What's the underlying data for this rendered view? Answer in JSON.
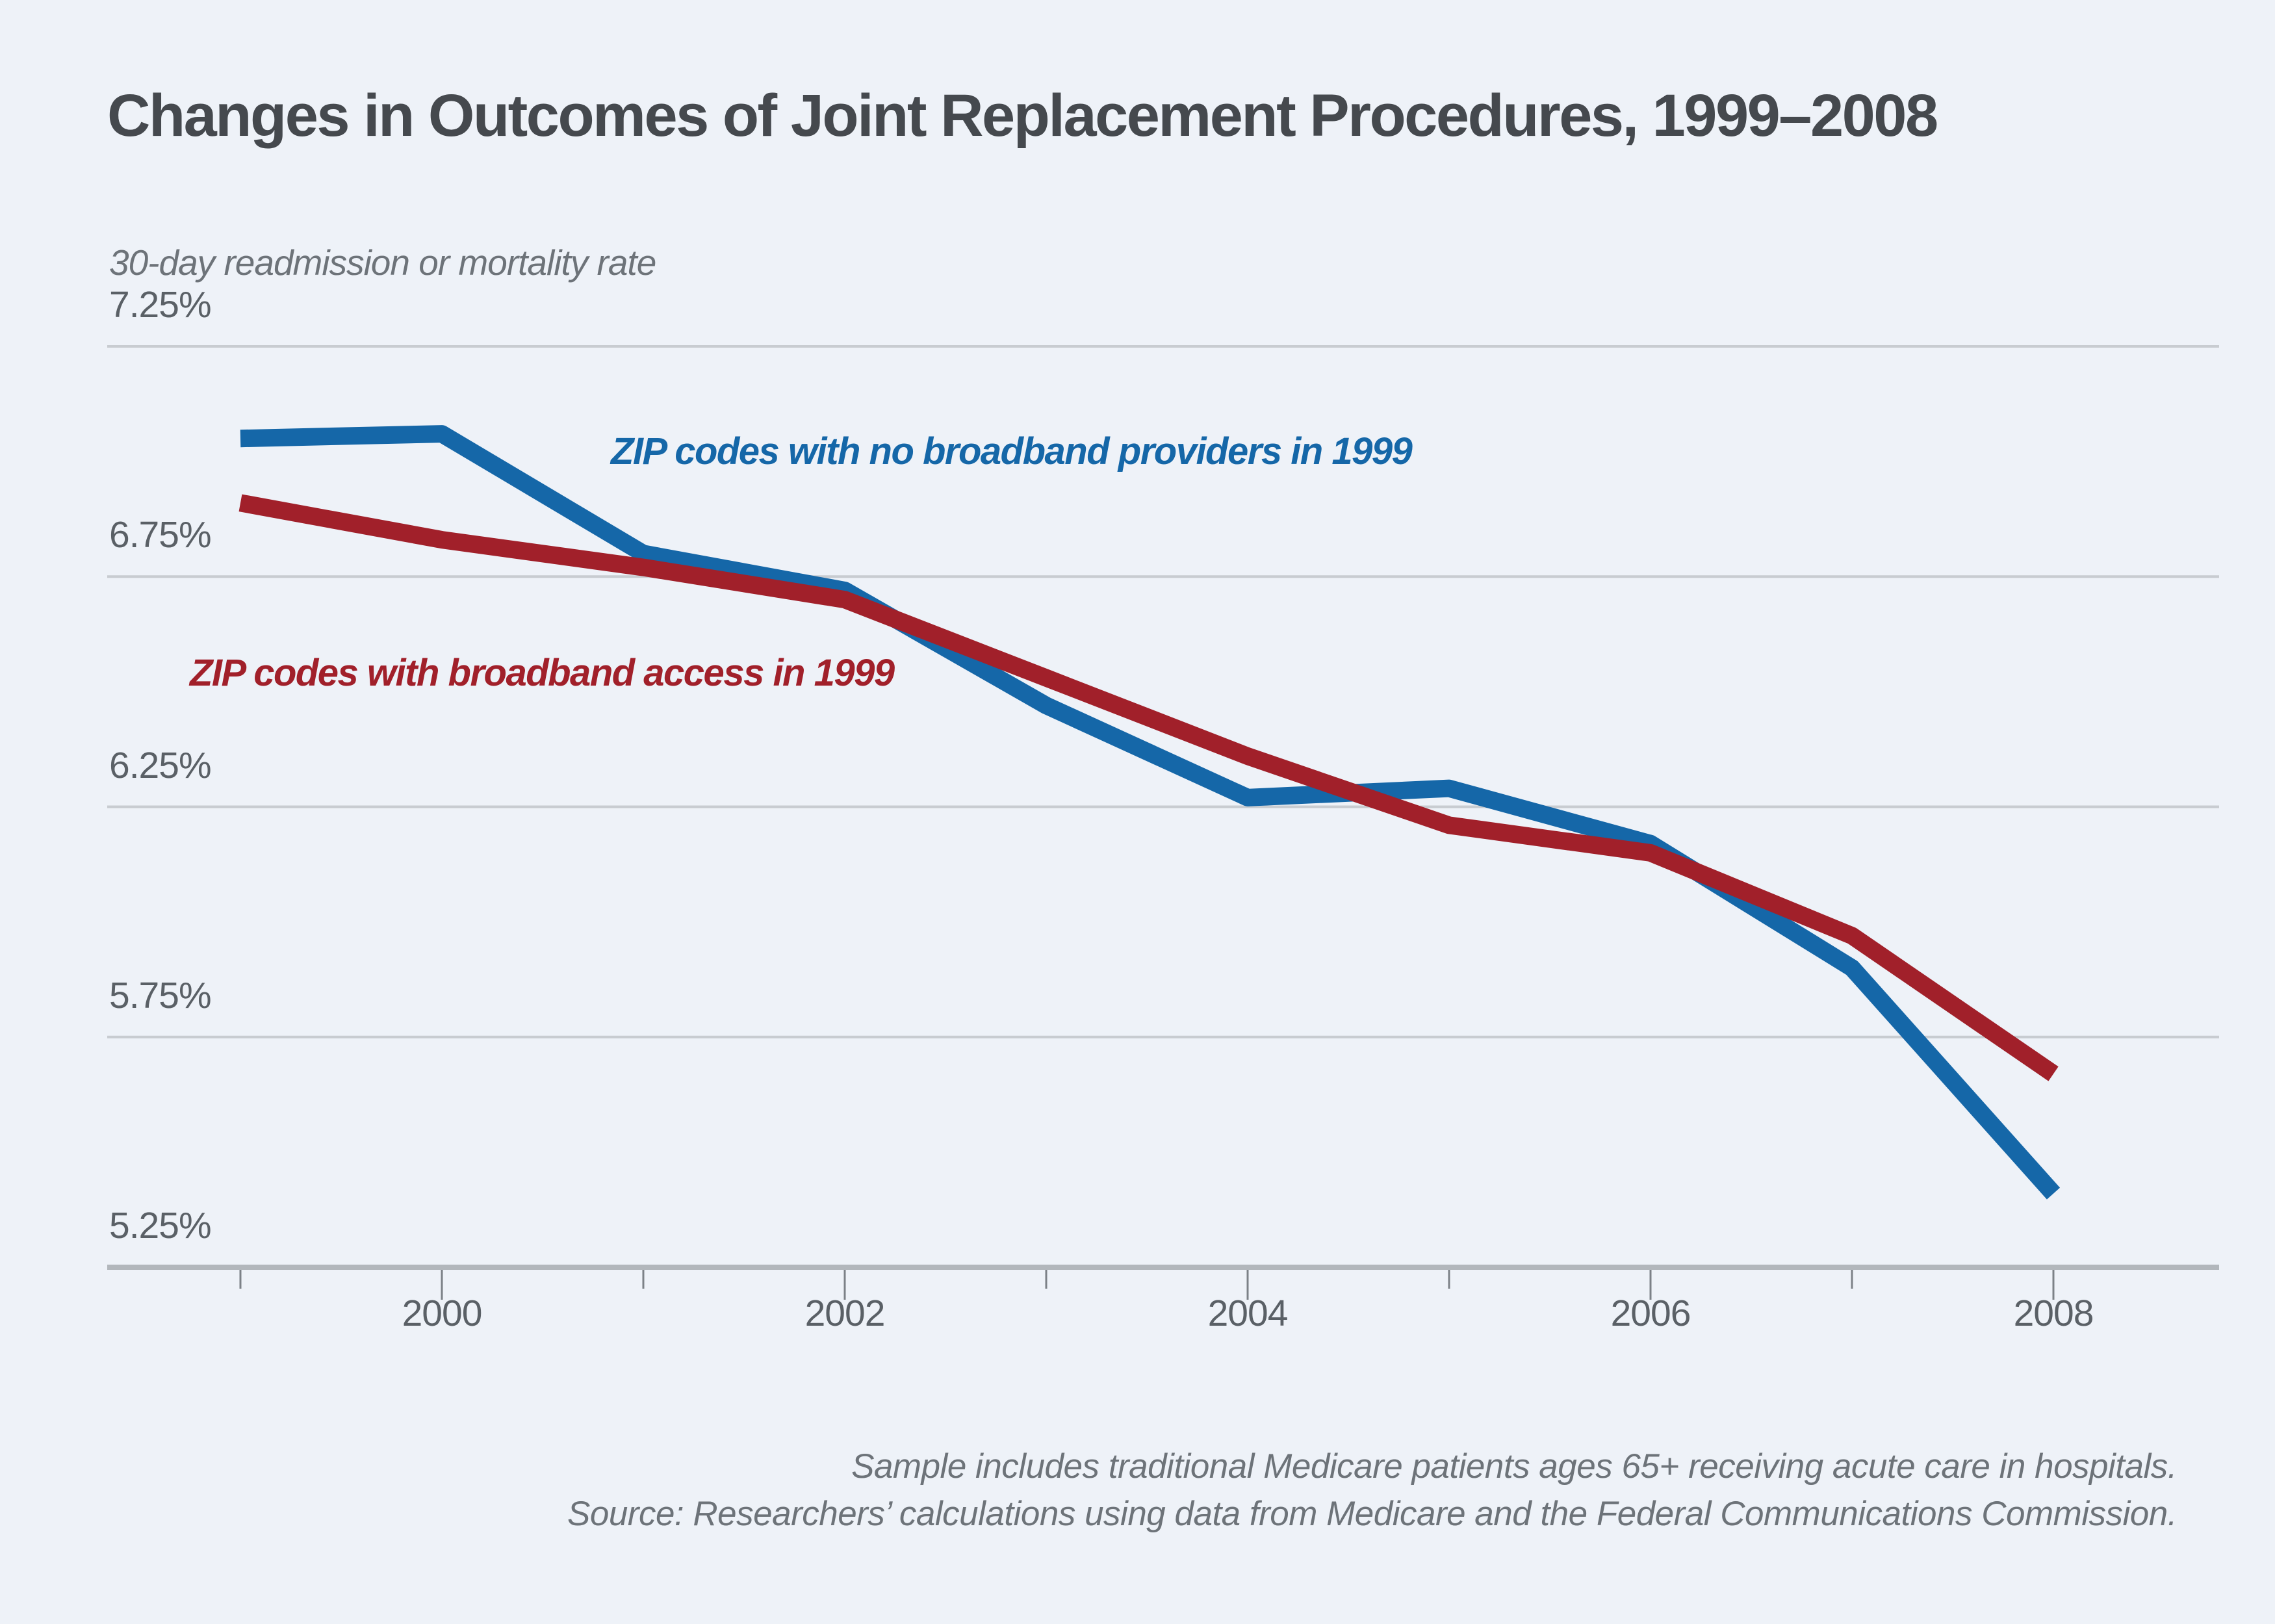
{
  "chart_data": {
    "type": "line",
    "title": "Changes in Outcomes of Joint Replacement Procedures, 1999–2008",
    "ylabel": "30-day readmission or mortality rate",
    "x": [
      1999,
      2000,
      2001,
      2002,
      2003,
      2004,
      2005,
      2006,
      2007,
      2008
    ],
    "series": [
      {
        "name": "ZIP codes with no broadband providers in 1999",
        "color": "#1567a8",
        "values": [
          7.05,
          7.06,
          6.8,
          6.72,
          6.47,
          6.27,
          6.29,
          6.17,
          5.9,
          5.41
        ]
      },
      {
        "name": "ZIP codes with broadband access in 1999",
        "color": "#a1202a",
        "values": [
          6.91,
          6.83,
          6.77,
          6.7,
          6.53,
          6.36,
          6.21,
          6.15,
          5.97,
          5.67
        ]
      }
    ],
    "y_ticks": [
      {
        "label": "7.25%",
        "value": 7.25
      },
      {
        "label": "6.75%",
        "value": 6.75
      },
      {
        "label": "6.25%",
        "value": 6.25
      },
      {
        "label": "5.75%",
        "value": 5.75
      },
      {
        "label": "5.25%",
        "value": 5.25
      }
    ],
    "x_tick_labels": [
      {
        "label": "2000",
        "value": 2000
      },
      {
        "label": "2002",
        "value": 2002
      },
      {
        "label": "2004",
        "value": 2004
      },
      {
        "label": "2006",
        "value": 2006
      },
      {
        "label": "2008",
        "value": 2008
      }
    ],
    "ylim": [
      5.25,
      7.25
    ],
    "xlim": [
      1999,
      2008
    ],
    "grid": "horizontal gridlines at labeled y ticks, bottom axis line only",
    "legend_position": "inline colored labels beside each line",
    "footnotes": [
      "Sample includes traditional Medicare patients ages 65+ receiving acute care in hospitals.",
      "Source: Researchers’ calculations using data from Medicare and the Federal Communications Commission."
    ],
    "colors": {
      "background": "#eef2f8",
      "gridline": "#c8ccd1",
      "axis_line": "#b2b7bc",
      "tick_mark": "#7c8187",
      "title_text": "#45494e",
      "tick_label_text": "#5a6066",
      "muted_text": "#6d7379"
    }
  }
}
